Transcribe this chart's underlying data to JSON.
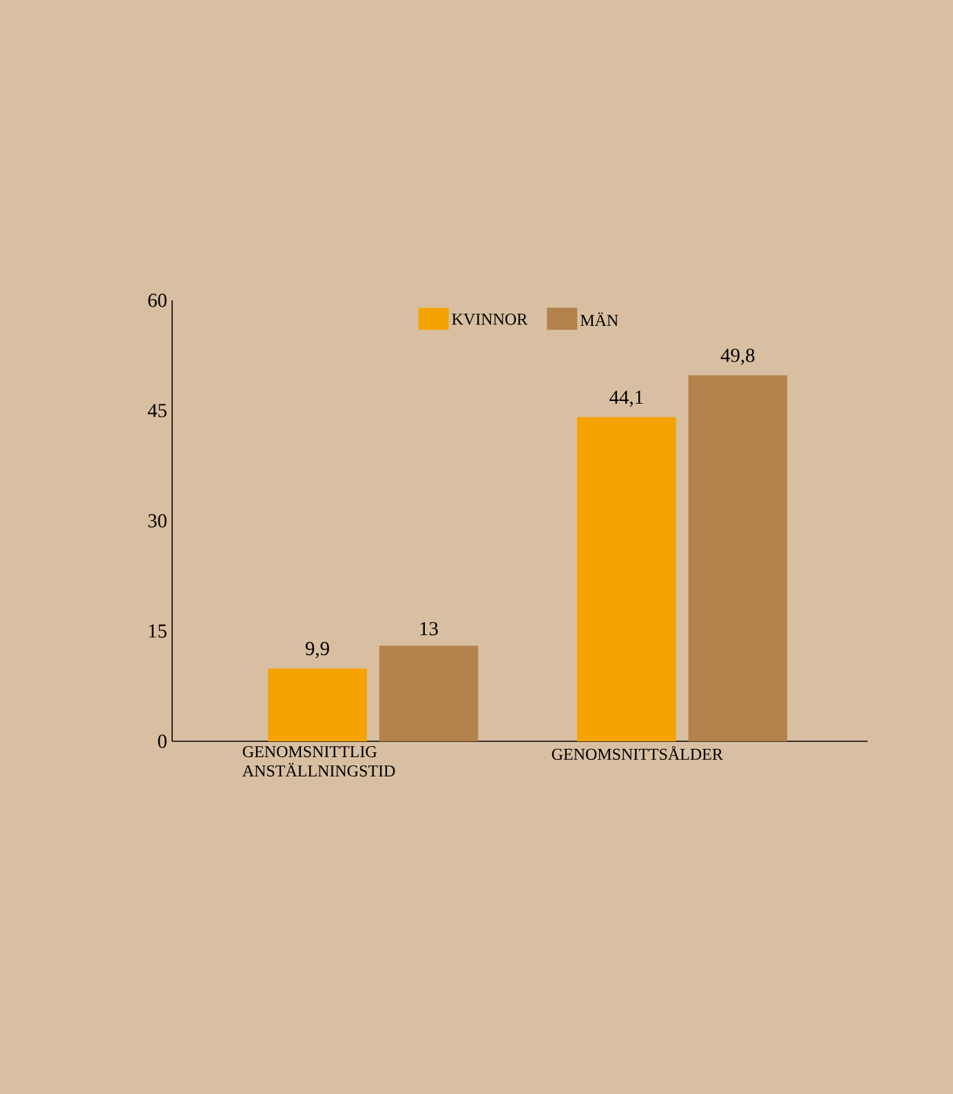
{
  "chart_data": {
    "type": "bar",
    "categories": [
      "GENOMSNITTLIG ANSTÄLLNINGSTID",
      "GENOMSNITTSÅLDER"
    ],
    "series": [
      {
        "name": "KVINNOR",
        "color": "#f5a300",
        "values": [
          9.9,
          44.1
        ],
        "value_labels": [
          "9,9",
          "44,1"
        ]
      },
      {
        "name": "MÄN",
        "color": "#b3824c",
        "values": [
          13,
          49.8
        ],
        "value_labels": [
          "13",
          "49,8"
        ]
      }
    ],
    "ylim": [
      0,
      60
    ],
    "yticks": [
      0,
      15,
      30,
      45,
      60
    ],
    "grid": false,
    "legend": "top"
  }
}
